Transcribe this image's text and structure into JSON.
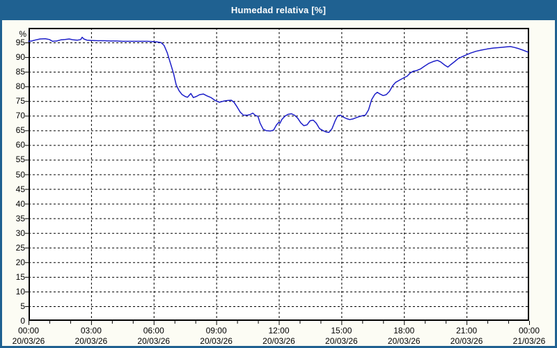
{
  "window": {
    "title": "Humedad relativa [%]"
  },
  "colors": {
    "titlebar": "#1F6191",
    "frame": "#1F6191",
    "content_bg": "#FCFCF4",
    "plot_bg": "#FFFFFF",
    "grid": "#000000",
    "axis": "#000000",
    "line": "#1C1EC8",
    "text": "#000000",
    "title_text": "#FFFFFF"
  },
  "chart_data": {
    "type": "line",
    "title": "Humedad relativa [%]",
    "ylabel_unit": "%",
    "ylim": [
      0,
      100
    ],
    "xlim_hours": [
      0,
      24
    ],
    "grid": "dashed-black",
    "legend": "none",
    "y_tick_values": [
      0,
      5,
      10,
      15,
      20,
      25,
      30,
      35,
      40,
      45,
      50,
      55,
      60,
      65,
      70,
      75,
      80,
      85,
      90,
      95
    ],
    "x_ticks": [
      {
        "hour": 0,
        "time": "00:00",
        "date": "20/03/26"
      },
      {
        "hour": 3,
        "time": "03:00",
        "date": "20/03/26"
      },
      {
        "hour": 6,
        "time": "06:00",
        "date": "20/03/26"
      },
      {
        "hour": 9,
        "time": "09:00",
        "date": "20/03/26"
      },
      {
        "hour": 12,
        "time": "12:00",
        "date": "20/03/26"
      },
      {
        "hour": 15,
        "time": "15:00",
        "date": "20/03/26"
      },
      {
        "hour": 18,
        "time": "18:00",
        "date": "20/03/26"
      },
      {
        "hour": 21,
        "time": "21:00",
        "date": "20/03/26"
      },
      {
        "hour": 24,
        "time": "00:00",
        "date": "21/03/26"
      }
    ],
    "minor_x_tick_every_hours": 1,
    "series": [
      {
        "name": "Humedad relativa",
        "color": "#1C1EC8",
        "points": [
          [
            0,
            95.4
          ],
          [
            0.15,
            95.5
          ],
          [
            0.35,
            95.9
          ],
          [
            0.55,
            96.2
          ],
          [
            0.8,
            96.3
          ],
          [
            1.0,
            96.0
          ],
          [
            1.15,
            95.4
          ],
          [
            1.35,
            95.5
          ],
          [
            1.55,
            95.9
          ],
          [
            1.75,
            96.0
          ],
          [
            1.95,
            96.2
          ],
          [
            2.15,
            95.9
          ],
          [
            2.35,
            95.8
          ],
          [
            2.5,
            96.0
          ],
          [
            2.57,
            96.8
          ],
          [
            2.65,
            96.2
          ],
          [
            2.8,
            95.8
          ],
          [
            3.0,
            95.7
          ],
          [
            3.3,
            95.6
          ],
          [
            3.6,
            95.6
          ],
          [
            3.9,
            95.5
          ],
          [
            4.2,
            95.5
          ],
          [
            4.5,
            95.4
          ],
          [
            4.8,
            95.4
          ],
          [
            5.1,
            95.4
          ],
          [
            5.4,
            95.4
          ],
          [
            5.7,
            95.4
          ],
          [
            5.95,
            95.3
          ],
          [
            6.15,
            95.2
          ],
          [
            6.35,
            95.0
          ],
          [
            6.5,
            94.0
          ],
          [
            6.65,
            91.5
          ],
          [
            6.8,
            88.0
          ],
          [
            6.95,
            84.5
          ],
          [
            7.08,
            80.5
          ],
          [
            7.22,
            78.5
          ],
          [
            7.35,
            77.3
          ],
          [
            7.5,
            76.6
          ],
          [
            7.62,
            76.3
          ],
          [
            7.78,
            77.6
          ],
          [
            7.9,
            76.2
          ],
          [
            8.05,
            76.6
          ],
          [
            8.2,
            77.2
          ],
          [
            8.38,
            77.4
          ],
          [
            8.55,
            76.8
          ],
          [
            8.75,
            76.2
          ],
          [
            8.95,
            75.2
          ],
          [
            9.15,
            74.6
          ],
          [
            9.35,
            75.0
          ],
          [
            9.55,
            75.2
          ],
          [
            9.72,
            75.3
          ],
          [
            9.85,
            74.6
          ],
          [
            10.0,
            73.0
          ],
          [
            10.15,
            71.2
          ],
          [
            10.3,
            70.2
          ],
          [
            10.5,
            70.2
          ],
          [
            10.62,
            70.4
          ],
          [
            10.75,
            70.9
          ],
          [
            10.88,
            70.1
          ],
          [
            11.0,
            69.8
          ],
          [
            11.1,
            67.5
          ],
          [
            11.25,
            65.4
          ],
          [
            11.4,
            64.9
          ],
          [
            11.6,
            64.8
          ],
          [
            11.75,
            65.1
          ],
          [
            11.88,
            66.8
          ],
          [
            12.0,
            67.8
          ],
          [
            12.05,
            67.4
          ],
          [
            12.15,
            68.8
          ],
          [
            12.3,
            69.9
          ],
          [
            12.45,
            70.5
          ],
          [
            12.6,
            70.7
          ],
          [
            12.75,
            70.2
          ],
          [
            12.9,
            69.2
          ],
          [
            13.05,
            67.6
          ],
          [
            13.2,
            66.6
          ],
          [
            13.35,
            66.9
          ],
          [
            13.5,
            68.3
          ],
          [
            13.65,
            68.5
          ],
          [
            13.8,
            67.4
          ],
          [
            13.95,
            65.6
          ],
          [
            14.1,
            65.0
          ],
          [
            14.25,
            64.5
          ],
          [
            14.4,
            64.3
          ],
          [
            14.55,
            65.6
          ],
          [
            14.7,
            68.3
          ],
          [
            14.82,
            70.0
          ],
          [
            14.95,
            70.2
          ],
          [
            15.1,
            69.5
          ],
          [
            15.25,
            69.0
          ],
          [
            15.4,
            68.7
          ],
          [
            15.55,
            68.9
          ],
          [
            15.7,
            69.3
          ],
          [
            15.85,
            69.7
          ],
          [
            16.0,
            70.0
          ],
          [
            16.15,
            70.2
          ],
          [
            16.3,
            72.0
          ],
          [
            16.45,
            75.5
          ],
          [
            16.6,
            77.3
          ],
          [
            16.72,
            78.0
          ],
          [
            16.85,
            77.4
          ],
          [
            17.0,
            76.9
          ],
          [
            17.15,
            77.2
          ],
          [
            17.3,
            78.3
          ],
          [
            17.45,
            80.2
          ],
          [
            17.6,
            81.4
          ],
          [
            17.8,
            82.2
          ],
          [
            18.0,
            83.0
          ],
          [
            18.15,
            83.5
          ],
          [
            18.3,
            84.6
          ],
          [
            18.45,
            85.2
          ],
          [
            18.6,
            85.4
          ],
          [
            18.8,
            86.0
          ],
          [
            19.0,
            87.0
          ],
          [
            19.2,
            87.9
          ],
          [
            19.4,
            88.5
          ],
          [
            19.6,
            88.9
          ],
          [
            19.75,
            88.4
          ],
          [
            19.95,
            87.3
          ],
          [
            20.1,
            86.6
          ],
          [
            20.25,
            87.5
          ],
          [
            20.45,
            88.6
          ],
          [
            20.6,
            89.5
          ],
          [
            20.8,
            90.2
          ],
          [
            21.0,
            90.8
          ],
          [
            21.2,
            91.4
          ],
          [
            21.45,
            92.0
          ],
          [
            21.7,
            92.4
          ],
          [
            22.0,
            92.8
          ],
          [
            22.3,
            93.1
          ],
          [
            22.6,
            93.3
          ],
          [
            22.9,
            93.5
          ],
          [
            23.1,
            93.6
          ],
          [
            23.3,
            93.3
          ],
          [
            23.5,
            92.9
          ],
          [
            23.7,
            92.4
          ],
          [
            23.95,
            91.7
          ]
        ]
      }
    ]
  }
}
